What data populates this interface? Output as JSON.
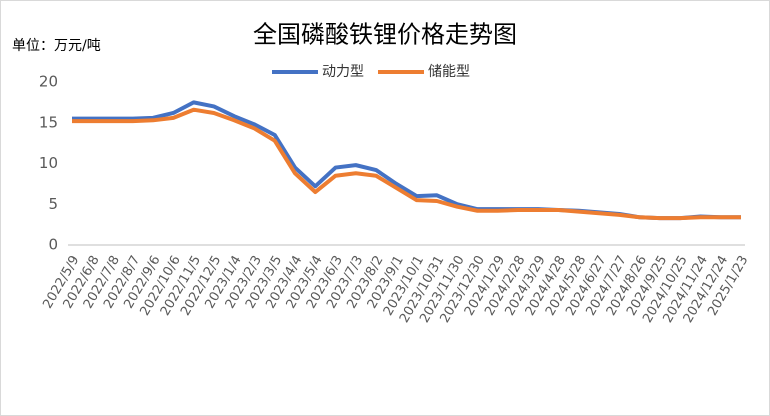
{
  "chart_data": {
    "type": "line",
    "title": "全国磷酸铁锂价格走势图",
    "y_label": "单位：万元/吨",
    "categories": [
      "2022/5/9",
      "2022/6/8",
      "2022/7/8",
      "2022/8/7",
      "2022/9/6",
      "2022/10/6",
      "2022/11/5",
      "2022/12/5",
      "2023/1/4",
      "2023/2/3",
      "2023/3/5",
      "2023/4/4",
      "2023/5/4",
      "2023/6/3",
      "2023/7/3",
      "2023/8/2",
      "2023/9/1",
      "2023/10/1",
      "2023/10/31",
      "2023/11/30",
      "2023/12/30",
      "2024/1/29",
      "2024/2/28",
      "2024/3/29",
      "2024/4/28",
      "2024/5/28",
      "2024/6/27",
      "2024/7/27",
      "2024/8/26",
      "2024/9/25",
      "2024/10/25",
      "2024/11/24",
      "2024/12/24",
      "2025/1/23"
    ],
    "series": [
      {
        "name": "动力型",
        "color": "#4472c4",
        "values": [
          15.5,
          15.5,
          15.5,
          15.5,
          15.6,
          16.2,
          17.5,
          17.0,
          15.8,
          14.8,
          13.5,
          9.5,
          7.2,
          9.5,
          9.8,
          9.2,
          7.5,
          6.0,
          6.1,
          5.0,
          4.4,
          4.4,
          4.4,
          4.4,
          4.3,
          4.2,
          4.0,
          3.8,
          3.4,
          3.3,
          3.3,
          3.5,
          3.4,
          3.4
        ]
      },
      {
        "name": "储能型",
        "color": "#ed7d31",
        "values": [
          15.2,
          15.2,
          15.2,
          15.2,
          15.3,
          15.6,
          16.6,
          16.2,
          15.3,
          14.3,
          12.8,
          8.8,
          6.5,
          8.5,
          8.8,
          8.5,
          7.0,
          5.5,
          5.4,
          4.7,
          4.2,
          4.2,
          4.3,
          4.3,
          4.3,
          4.1,
          3.9,
          3.7,
          3.4,
          3.3,
          3.3,
          3.4,
          3.4,
          3.4
        ]
      }
    ],
    "ylim": [
      0,
      20
    ],
    "yticks": [
      0,
      5,
      10,
      15,
      20
    ],
    "grid": false
  }
}
